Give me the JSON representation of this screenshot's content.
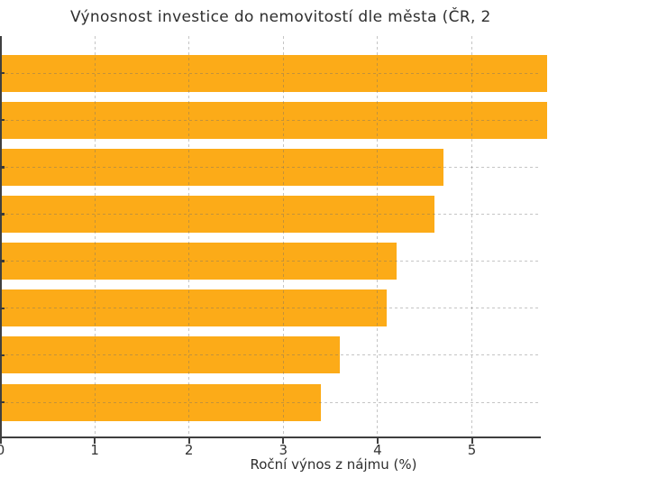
{
  "title": "Výnosnost investice do nemovitostí dle města (ČR, 2",
  "axes": {
    "xlabel": "Roční výnos z nájmu (%)",
    "x_tick_labels": [
      "0",
      "1",
      "2",
      "3",
      "4",
      "5"
    ]
  },
  "chart_data": {
    "type": "bar",
    "orientation": "horizontal",
    "title": "Výnosnost investice do nemovitostí dle města (ČR, 2",
    "title_note": "title text clipped by right edge of screenshot",
    "xlabel": "Roční výnos z nájmu (%)",
    "ylabel": "",
    "x_ticks": [
      0,
      1,
      2,
      3,
      4,
      5
    ],
    "xlim_visible": [
      0,
      5.73
    ],
    "n_bars": 8,
    "categories_visible": false,
    "categories_note": "y-axis category labels are cropped off the left edge of the screenshot; only tick marks visible",
    "values": [
      5.8,
      5.8,
      4.7,
      4.6,
      4.2,
      4.1,
      3.6,
      3.4
    ],
    "bars_clipped_at_right_edge": [
      true,
      true,
      false,
      false,
      false,
      false,
      false,
      false
    ],
    "grid": {
      "style": "dashed",
      "axes": "both",
      "drawn_over_bars": true
    },
    "legend": null
  },
  "colors": {
    "bar": "#FCAB18",
    "background": "#ffffff",
    "grid": "#c5c5c5",
    "axis": "#3f3f3f",
    "text": "#2e2e2e"
  }
}
